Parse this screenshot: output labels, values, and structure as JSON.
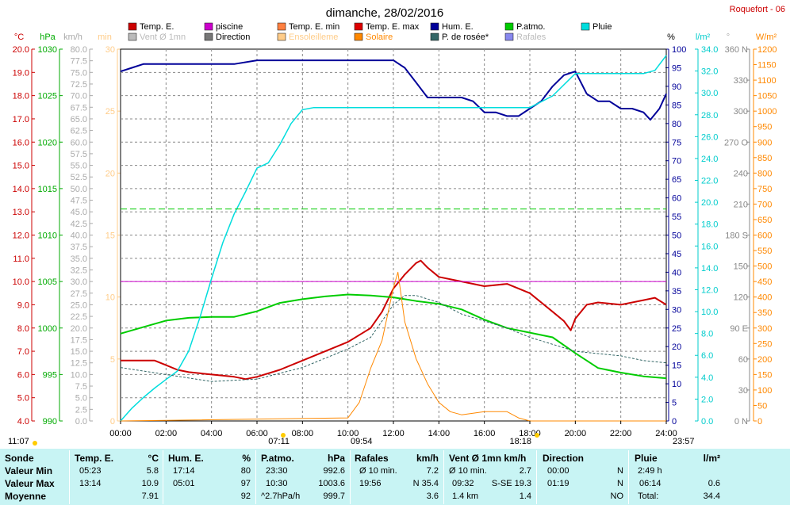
{
  "title": "dimanche, 28/02/2016",
  "station": "Roquefort - 06",
  "colors": {
    "temp": "#cc0000",
    "piscine": "#cc00cc",
    "tmin": "#ff8040",
    "tmax": "#dd0000",
    "hum": "#000099",
    "patmo": "#00cc00",
    "pluie": "#00dddd",
    "vent": "#bbbbbb",
    "direction": "#777777",
    "ensoleillement": "#ffcc88",
    "solaire": "#ff8800",
    "rosee": "#336666",
    "rafales": "#8888ee",
    "grid": "#888888"
  },
  "legend": [
    {
      "label": "Temp. E.",
      "swatch": "temp"
    },
    {
      "label": "piscine",
      "swatch": "piscine"
    },
    {
      "label": "Temp. E. min",
      "swatch": "tmin"
    },
    {
      "label": "Temp. E. max",
      "swatch": "tmax"
    },
    {
      "label": "Hum. E.",
      "swatch": "hum"
    },
    {
      "label": "P.atmo.",
      "swatch": "patmo"
    },
    {
      "label": "Pluie",
      "swatch": "pluie"
    },
    {
      "label": "Vent Ø 1mn",
      "swatch": "vent"
    },
    {
      "label": "Direction",
      "swatch": "direction"
    },
    {
      "label": "Ensoleilleme",
      "swatch": "ensoleillement"
    },
    {
      "label": "Solaire",
      "swatch": "solaire"
    },
    {
      "label": "P. de rosée*",
      "swatch": "rosee"
    },
    {
      "label": "Rafales",
      "swatch": "rafales"
    }
  ],
  "axis_units": {
    "temp": "°C",
    "press": "hPa",
    "wind": "km/h",
    "min": "min",
    "hum": "%",
    "rain": "l/m²",
    "dir": "°",
    "solar": "W/m²"
  },
  "chart_data": {
    "type": "line",
    "x_ticks": [
      "00:00",
      "02:00",
      "04:00",
      "06:00",
      "08:00",
      "10:00",
      "12:00",
      "14:00",
      "16:00",
      "18:00",
      "20:00",
      "22:00",
      "24:00"
    ],
    "axes": {
      "temp": {
        "range": [
          4,
          20
        ],
        "ticks": [
          "20.0",
          "19.0",
          "18.0",
          "17.0",
          "16.0",
          "15.0",
          "14.0",
          "13.0",
          "12.0",
          "11.0",
          "10.0",
          "9.0",
          "8.0",
          "7.0",
          "6.0",
          "5.0",
          "4.0"
        ]
      },
      "press": {
        "range": [
          990,
          1030
        ],
        "ticks": [
          "1030",
          "1025",
          "1020",
          "1015",
          "1010",
          "1005",
          "1000",
          "995",
          "990"
        ]
      },
      "wind": {
        "range": [
          0,
          80
        ],
        "ticks": [
          "80.0",
          "77.5",
          "75.0",
          "72.5",
          "70.0",
          "67.5",
          "65.0",
          "62.5",
          "60.0",
          "57.5",
          "55.0",
          "52.5",
          "50.0",
          "47.5",
          "45.0",
          "42.5",
          "40.0",
          "37.5",
          "35.0",
          "32.5",
          "30.0",
          "27.5",
          "25.0",
          "22.5",
          "20.0",
          "17.5",
          "15.0",
          "12.5",
          "10.0",
          "7.5",
          "5.0",
          "2.5",
          "0.0"
        ]
      },
      "sun_min": {
        "range": [
          0,
          30
        ],
        "ticks": [
          "30",
          "25",
          "20",
          "15",
          "10",
          "5",
          "0"
        ]
      },
      "hum": {
        "range": [
          0,
          100
        ],
        "ticks": [
          "100",
          "95",
          "90",
          "85",
          "80",
          "75",
          "70",
          "65",
          "60",
          "55",
          "50",
          "45",
          "40",
          "35",
          "30",
          "25",
          "20",
          "15",
          "10",
          "5",
          "0"
        ]
      },
      "rain": {
        "range": [
          0,
          35
        ],
        "ticks": [
          "34.0",
          "32.0",
          "30.0",
          "28.0",
          "26.0",
          "24.0",
          "22.0",
          "20.0",
          "18.0",
          "16.0",
          "14.0",
          "12.0",
          "10.0",
          "8.0",
          "6.0",
          "4.0",
          "2.0",
          "0.0"
        ]
      },
      "dir": {
        "range": [
          0,
          360
        ],
        "ticks": [
          "360 N",
          "330",
          "300",
          "270 O",
          "240",
          "210",
          "180 S",
          "150",
          "120",
          "90 E",
          "60",
          "30",
          "0 N"
        ]
      },
      "solar": {
        "range": [
          0,
          1200
        ],
        "ticks": [
          "1200",
          "1150",
          "1100",
          "1050",
          "1000",
          "950",
          "900",
          "850",
          "800",
          "750",
          "700",
          "650",
          "600",
          "550",
          "500",
          "450",
          "400",
          "350",
          "300",
          "250",
          "200",
          "150",
          "100",
          "50",
          "0"
        ]
      }
    },
    "series": [
      {
        "name": "Temp. E.",
        "axis": "temp",
        "color": "temp",
        "x": [
          0,
          1.5,
          2,
          2.5,
          3,
          4,
          5,
          5.5,
          6,
          7,
          8,
          9,
          10,
          11,
          11.5,
          12,
          12.5,
          13,
          13.2,
          13.5,
          14,
          15,
          16,
          17,
          18,
          19,
          19.5,
          19.8,
          20,
          20.5,
          21,
          22,
          23,
          23.5,
          24
        ],
        "y": [
          6.6,
          6.6,
          6.4,
          6.2,
          6.1,
          6.0,
          5.9,
          5.8,
          5.9,
          6.2,
          6.6,
          7.0,
          7.4,
          8.0,
          8.7,
          9.7,
          10.3,
          10.8,
          10.9,
          10.6,
          10.2,
          10.0,
          9.8,
          9.9,
          9.5,
          8.7,
          8.3,
          7.9,
          8.4,
          9.0,
          9.1,
          9.0,
          9.2,
          9.3,
          9.0
        ]
      },
      {
        "name": "piscine",
        "axis": "temp",
        "color": "piscine",
        "x": [
          0,
          24
        ],
        "y": [
          10,
          10
        ]
      },
      {
        "name": "P.atmo.",
        "axis": "press",
        "color": "patmo",
        "x": [
          0,
          1,
          2,
          3,
          4,
          5,
          6,
          7,
          8,
          9,
          10,
          11,
          12,
          13,
          14,
          15,
          16,
          17,
          18,
          19,
          20,
          20.5,
          21,
          22,
          23,
          24
        ],
        "y": [
          999.4,
          1000.1,
          1000.8,
          1001.1,
          1001.2,
          1001.2,
          1001.8,
          1002.7,
          1003.1,
          1003.4,
          1003.6,
          1003.5,
          1003.3,
          1002.9,
          1002.6,
          1002.0,
          1000.9,
          1000.0,
          999.5,
          999.0,
          997.3,
          996.5,
          995.7,
          995.2,
          994.8,
          994.6
        ]
      },
      {
        "name": "Hum. E.",
        "axis": "hum",
        "color": "hum",
        "x": [
          0,
          0.5,
          1,
          1.5,
          3,
          5,
          6,
          7,
          8,
          9,
          10,
          11,
          12,
          12.5,
          13,
          13.5,
          14,
          14.5,
          15,
          15.5,
          16,
          16.5,
          17,
          17.5,
          18,
          18.5,
          19,
          19.5,
          20,
          20.5,
          21,
          21.5,
          22,
          22.5,
          23,
          23.3,
          23.7,
          24
        ],
        "y": [
          94,
          95,
          96,
          96,
          96,
          96,
          97,
          97,
          97,
          97,
          97,
          97,
          97,
          95,
          91,
          87,
          87,
          87,
          87,
          86,
          83,
          83,
          82,
          82,
          84,
          86,
          90,
          93,
          94,
          88,
          86,
          86,
          84,
          84,
          83,
          81,
          84,
          88
        ]
      },
      {
        "name": "Pluie",
        "axis": "rain",
        "color": "pluie",
        "x": [
          0,
          0.5,
          1,
          1.5,
          2,
          2.5,
          3,
          3.5,
          4,
          4.5,
          5,
          5.5,
          6,
          6.5,
          7,
          7.5,
          8,
          8.5,
          9,
          10,
          12,
          14,
          16,
          18,
          19,
          20,
          21,
          22,
          23,
          23.5,
          24
        ],
        "y": [
          0,
          1.2,
          2.2,
          3.1,
          3.9,
          4.7,
          6.6,
          9.8,
          13.4,
          16.8,
          19.5,
          21.6,
          23.8,
          24.3,
          26.0,
          28.0,
          29.3,
          29.5,
          29.5,
          29.5,
          29.5,
          29.5,
          29.5,
          29.5,
          30.6,
          32.7,
          32.7,
          32.7,
          32.7,
          33.0,
          34.4
        ]
      },
      {
        "name": "P. de rosée*",
        "axis": "temp",
        "color": "rosee",
        "x": [
          0,
          2,
          4,
          6,
          8,
          10,
          11,
          12,
          12.5,
          13,
          14,
          15,
          16,
          17,
          18,
          19,
          20,
          21,
          22,
          23,
          24
        ],
        "y": [
          6.3,
          6.0,
          5.7,
          5.8,
          6.3,
          7.1,
          7.6,
          9.0,
          9.4,
          9.4,
          9.1,
          8.6,
          8.3,
          8.0,
          7.6,
          7.3,
          7.0,
          6.9,
          6.8,
          6.6,
          6.5
        ]
      },
      {
        "name": "Solaire",
        "axis": "solar",
        "color": "solaire",
        "x": [
          0,
          10,
          10.5,
          11,
          11.5,
          12,
          12.2,
          12.5,
          13,
          13.5,
          14,
          14.5,
          15,
          16,
          17,
          17.5,
          18,
          24
        ],
        "y": [
          0,
          10,
          60,
          170,
          260,
          430,
          480,
          320,
          200,
          120,
          60,
          30,
          20,
          30,
          30,
          10,
          0,
          0
        ]
      }
    ],
    "annotations": {
      "sunrise": "07:11",
      "sunset": "18:18",
      "max_flag": "12:00",
      "bottom_left": "11:07",
      "bottom_right": "23:57",
      "under_axis": "09:54"
    }
  },
  "summary": {
    "sonde": {
      "header": "Sonde",
      "rows": [
        "Valeur Min",
        "Valeur Max",
        "Moyenne"
      ]
    },
    "temp": {
      "header": "Temp. E.",
      "unit": "°C",
      "rows": [
        [
          "05:23",
          "5.8"
        ],
        [
          "13:14",
          "10.9"
        ],
        [
          "",
          "7.91"
        ]
      ]
    },
    "hum": {
      "header": "Hum. E.",
      "unit": "%",
      "rows": [
        [
          "17:14",
          "80"
        ],
        [
          "05:01",
          "97"
        ],
        [
          "",
          "92"
        ]
      ]
    },
    "patmo": {
      "header": "P.atmo.",
      "unit": "hPa",
      "rows": [
        [
          "23:30",
          "992.6"
        ],
        [
          "10:30",
          "1003.6"
        ],
        [
          "^2.7hPa/h",
          "999.7"
        ]
      ]
    },
    "rafales": {
      "header": "Rafales",
      "unit": "km/h",
      "rows": [
        [
          "Ø 10 min.",
          "7.2"
        ],
        [
          "19:56",
          "N 35.4"
        ],
        [
          "",
          "3.6"
        ]
      ]
    },
    "vent": {
      "header": "Vent Ø 1mn  km/h",
      "rows": [
        [
          "Ø 10 min.",
          "2.7"
        ],
        [
          "09:32",
          "S-SE 19.3"
        ],
        [
          "1.4 km",
          "1.4"
        ]
      ]
    },
    "direction": {
      "header": "Direction",
      "rows": [
        [
          "00:00",
          "N"
        ],
        [
          "01:19",
          "N"
        ],
        [
          "",
          "NO"
        ]
      ]
    },
    "pluie": {
      "header": "Pluie",
      "unit": "l/m²",
      "rows": [
        [
          "2:49 h",
          ""
        ],
        [
          "06:14",
          "0.6"
        ],
        [
          "Total:",
          "34.4"
        ]
      ]
    }
  }
}
